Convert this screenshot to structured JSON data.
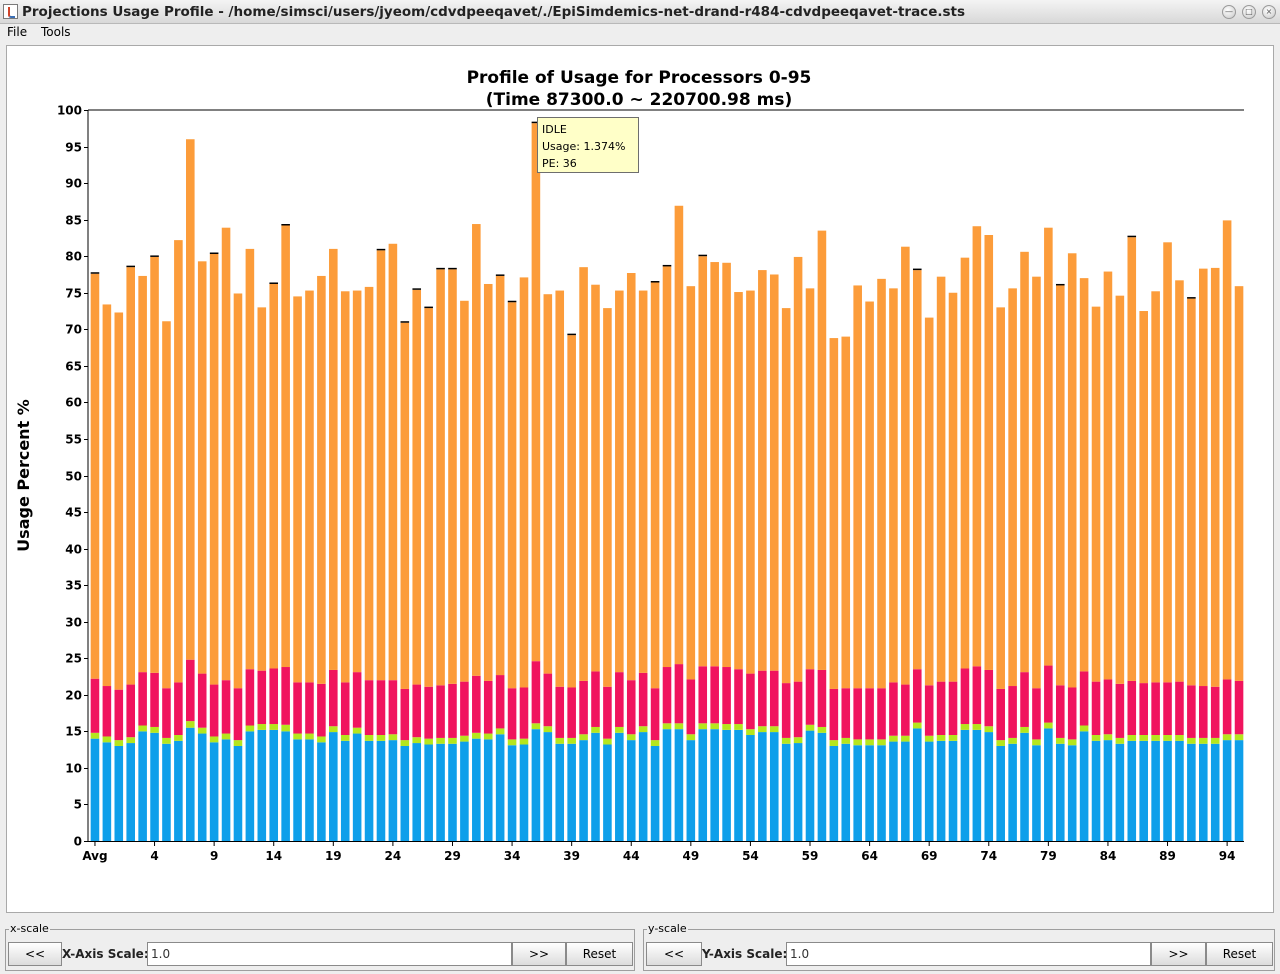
{
  "window": {
    "title": "Projections Usage Profile - /home/simsci/users/jyeom/cdvdpeeqavet/./EpiSimdemics-net-drand-r484-cdvdpeeqavet-trace.sts"
  },
  "menubar": {
    "items": [
      "File",
      "Tools"
    ]
  },
  "tooltip": {
    "title": "IDLE",
    "usage": "Usage: 1.374%",
    "pe": "PE: 36"
  },
  "xscale": {
    "legend": "x-scale",
    "prev_label": "<<",
    "label": "X-Axis Scale:",
    "value": "1.0",
    "next_label": ">>",
    "reset_label": "Reset"
  },
  "yscale": {
    "legend": "y-scale",
    "prev_label": "<<",
    "label": "Y-Axis Scale:",
    "value": "1.0",
    "next_label": ">>",
    "reset_label": "Reset"
  },
  "colors": {
    "blue": "#0e9fea",
    "green": "#b5e61d",
    "pink": "#f0145e",
    "orange": "#fc9c3a",
    "idle": "#000000"
  },
  "chart_data": {
    "type": "bar",
    "stacked": true,
    "title": "Profile of Usage for Processors 0-95",
    "subtitle": "(Time 87300.0 ~ 220700.98 ms)",
    "ylabel": "Usage Percent %",
    "ylim": [
      0,
      100
    ],
    "yticks": [
      0,
      5,
      10,
      15,
      20,
      25,
      30,
      35,
      40,
      45,
      50,
      55,
      60,
      65,
      70,
      75,
      80,
      85,
      90,
      95,
      100
    ],
    "xtick_labels": [
      "Avg",
      "4",
      "9",
      "14",
      "19",
      "24",
      "29",
      "34",
      "39",
      "44",
      "49",
      "54",
      "59",
      "64",
      "69",
      "74",
      "79",
      "84",
      "89",
      "94"
    ],
    "categories": [
      "Avg",
      "0",
      "1",
      "2",
      "3",
      "4",
      "5",
      "6",
      "7",
      "8",
      "9",
      "10",
      "11",
      "12",
      "13",
      "14",
      "15",
      "16",
      "17",
      "18",
      "19",
      "20",
      "21",
      "22",
      "23",
      "24",
      "25",
      "26",
      "27",
      "28",
      "29",
      "30",
      "31",
      "32",
      "33",
      "34",
      "35",
      "36",
      "37",
      "38",
      "39",
      "40",
      "41",
      "42",
      "43",
      "44",
      "45",
      "46",
      "47",
      "48",
      "49",
      "50",
      "51",
      "52",
      "53",
      "54",
      "55",
      "56",
      "57",
      "58",
      "59",
      "60",
      "61",
      "62",
      "63",
      "64",
      "65",
      "66",
      "67",
      "68",
      "69",
      "70",
      "71",
      "72",
      "73",
      "74",
      "75",
      "76",
      "77",
      "78",
      "79",
      "80",
      "81",
      "82",
      "83",
      "84",
      "85",
      "86",
      "87",
      "88",
      "89",
      "90",
      "91",
      "92",
      "93",
      "94",
      "95"
    ],
    "totals": [
      77.7,
      73.4,
      72.3,
      78.6,
      77.4,
      80.0,
      71.1,
      82.2,
      96.0,
      79.3,
      80.4,
      84.0,
      74.9,
      81.1,
      73.0,
      76.3,
      84.3,
      74.5,
      75.3,
      77.4,
      81.1,
      75.3,
      75.4,
      75.9,
      80.9,
      81.8,
      70.9,
      75.4,
      72.9,
      78.2,
      78.3,
      73.9,
      84.3,
      76.2,
      77.4,
      73.7,
      77.1,
      98.2,
      74.8,
      75.4,
      69.3,
      78.5,
      76.1,
      72.9,
      75.3,
      77.7,
      75.3,
      76.5,
      78.6,
      86.9,
      76.0,
      80.1,
      79.2,
      79.1,
      75.1,
      75.3,
      78.1,
      77.5,
      73.0,
      79.9,
      75.6,
      83.5,
      68.9,
      69.1,
      76.0,
      73.8,
      77.0,
      75.6,
      81.3,
      78.2,
      71.6,
      77.2,
      75.0,
      79.8,
      84.1,
      82.9,
      73.0,
      75.6,
      80.6,
      77.2,
      83.9,
      76.0,
      80.4,
      77.0,
      73.1,
      77.9,
      74.6,
      82.6,
      72.5,
      75.2,
      81.9,
      76.7,
      74.2,
      78.3,
      78.4,
      84.9,
      75.9
    ],
    "series": [
      {
        "values": [
          14.0,
          13.5,
          13.0,
          13.4,
          15.0,
          14.8,
          13.3,
          13.7,
          15.5,
          14.7,
          13.5,
          13.9,
          13.0,
          15.0,
          15.2,
          15.2,
          15.0,
          13.9,
          13.9,
          13.5,
          14.9,
          13.7,
          14.7,
          13.7,
          13.7,
          13.8,
          13.0,
          13.4,
          13.2,
          13.3,
          13.3,
          13.6,
          14.0,
          13.9,
          14.6,
          13.1,
          13.2,
          15.3,
          14.9,
          13.3,
          13.3,
          13.8,
          14.8,
          13.2,
          14.8,
          13.8,
          14.9,
          13.0,
          15.3,
          15.3,
          13.8,
          15.3,
          15.3,
          15.2,
          15.2,
          14.5,
          14.9,
          14.9,
          13.3,
          13.4,
          15.1,
          14.8,
          13.0,
          13.3,
          13.1,
          13.1,
          13.1,
          13.6,
          13.6,
          15.4,
          13.6,
          13.7,
          13.7,
          15.2,
          15.2,
          14.9,
          13.0,
          13.3,
          14.8,
          13.1,
          15.4,
          13.3,
          13.1,
          15.0,
          13.7,
          13.8,
          13.3,
          13.7,
          13.7,
          13.7,
          13.7,
          13.7,
          13.3,
          13.3,
          13.3,
          13.8,
          13.8
        ]
      },
      {
        "values": [
          0.8,
          0.8,
          0.8,
          0.8,
          0.8,
          0.8,
          0.8,
          0.8,
          0.9,
          0.8,
          0.8,
          0.8,
          0.8,
          0.8,
          0.8,
          0.8,
          0.9,
          0.8,
          0.8,
          0.8,
          0.8,
          0.8,
          0.8,
          0.8,
          0.8,
          0.8,
          0.8,
          0.8,
          0.8,
          0.8,
          0.8,
          0.8,
          0.8,
          0.8,
          0.8,
          0.8,
          0.8,
          0.8,
          0.8,
          0.8,
          0.8,
          0.8,
          0.8,
          0.8,
          0.8,
          0.8,
          0.8,
          0.8,
          0.8,
          0.8,
          0.8,
          0.8,
          0.8,
          0.8,
          0.8,
          0.8,
          0.8,
          0.8,
          0.8,
          0.8,
          0.8,
          0.8,
          0.8,
          0.8,
          0.8,
          0.8,
          0.8,
          0.8,
          0.8,
          0.8,
          0.8,
          0.8,
          0.8,
          0.8,
          0.8,
          0.8,
          0.8,
          0.8,
          0.8,
          0.8,
          0.8,
          0.8,
          0.8,
          0.8,
          0.8,
          0.8,
          0.8,
          0.8,
          0.8,
          0.8,
          0.8,
          0.8,
          0.8,
          0.8,
          0.8,
          0.8,
          0.8
        ]
      },
      {
        "values": [
          7.4,
          6.9,
          6.9,
          7.2,
          7.3,
          7.4,
          6.8,
          7.2,
          8.4,
          7.4,
          7.1,
          7.3,
          7.1,
          7.7,
          7.3,
          7.6,
          7.9,
          7.0,
          7.0,
          7.2,
          7.7,
          7.2,
          7.6,
          7.5,
          7.5,
          7.4,
          7.0,
          7.2,
          7.1,
          7.2,
          7.4,
          7.4,
          7.8,
          7.2,
          7.3,
          7.0,
          7.0,
          8.5,
          7.2,
          7.0,
          6.9,
          7.3,
          7.6,
          7.1,
          7.5,
          7.4,
          7.3,
          7.1,
          7.7,
          8.1,
          7.5,
          7.8,
          7.8,
          7.8,
          7.5,
          7.6,
          7.6,
          7.6,
          7.5,
          7.6,
          7.6,
          7.8,
          7.0,
          6.8,
          7.0,
          7.0,
          7.0,
          7.3,
          7.0,
          7.3,
          6.9,
          7.3,
          7.3,
          7.6,
          7.9,
          7.7,
          7.0,
          7.1,
          7.5,
          7.0,
          7.8,
          7.2,
          7.1,
          7.4,
          7.3,
          7.5,
          7.4,
          7.4,
          7.1,
          7.2,
          7.2,
          7.3,
          7.2,
          7.1,
          7.0,
          7.5,
          7.3
        ]
      },
      {
        "values": [
          55.4,
          52.2,
          51.6,
          57.1,
          54.2,
          56.9,
          50.2,
          60.5,
          71.2,
          56.4,
          58.9,
          61.9,
          54.0,
          57.5,
          49.7,
          52.6,
          60.4,
          52.8,
          53.6,
          55.8,
          57.6,
          53.5,
          52.2,
          53.8,
          58.8,
          59.7,
          50.1,
          54.0,
          51.8,
          56.9,
          56.7,
          52.1,
          61.8,
          54.3,
          54.6,
          52.8,
          56.1,
          73.6,
          51.9,
          54.2,
          48.2,
          56.6,
          52.9,
          51.8,
          52.2,
          55.7,
          52.3,
          55.5,
          54.8,
          62.7,
          53.8,
          56.1,
          55.3,
          55.3,
          51.6,
          52.4,
          54.8,
          54.2,
          51.3,
          58.1,
          52.1,
          60.1,
          48.0,
          48.1,
          55.1,
          52.9,
          56.0,
          53.9,
          59.9,
          54.6,
          50.3,
          55.4,
          53.2,
          56.2,
          60.2,
          59.5,
          52.2,
          54.4,
          57.5,
          56.3,
          59.9,
          54.7,
          59.4,
          53.8,
          51.3,
          55.8,
          53.1,
          60.7,
          50.9,
          53.5,
          60.2,
          54.9,
          52.9,
          57.1,
          57.3,
          62.8,
          54.0
        ]
      },
      {
        "values": [
          0.1,
          0.0,
          0.0,
          0.1,
          0.0,
          0.1,
          0.0,
          0.0,
          0.0,
          0.0,
          0.1,
          0.0,
          0.0,
          0.0,
          0.0,
          0.1,
          0.1,
          0.0,
          0.0,
          0.0,
          0.0,
          0.0,
          0.0,
          0.0,
          0.1,
          0.0,
          0.1,
          0.1,
          0.1,
          0.1,
          0.1,
          0.0,
          0.0,
          0.0,
          0.1,
          0.1,
          0.0,
          0.1,
          0.0,
          0.0,
          0.1,
          0.0,
          0.0,
          0.0,
          0.0,
          0.0,
          0.0,
          0.1,
          0.1,
          0.0,
          0.0,
          0.1,
          0.0,
          0.0,
          0.0,
          0.0,
          0.0,
          0.0,
          0.0,
          0.0,
          0.0,
          0.0,
          0.0,
          0.0,
          0.0,
          0.0,
          0.0,
          0.0,
          0.0,
          0.1,
          0.0,
          0.0,
          0.0,
          0.0,
          0.0,
          0.0,
          0.0,
          0.0,
          0.0,
          0.0,
          0.0,
          0.1,
          0.0,
          0.0,
          0.0,
          0.0,
          0.0,
          0.1,
          0.0,
          0.0,
          0.0,
          0.0,
          0.1,
          0.0,
          0.0,
          0.0,
          0.0
        ]
      }
    ]
  }
}
